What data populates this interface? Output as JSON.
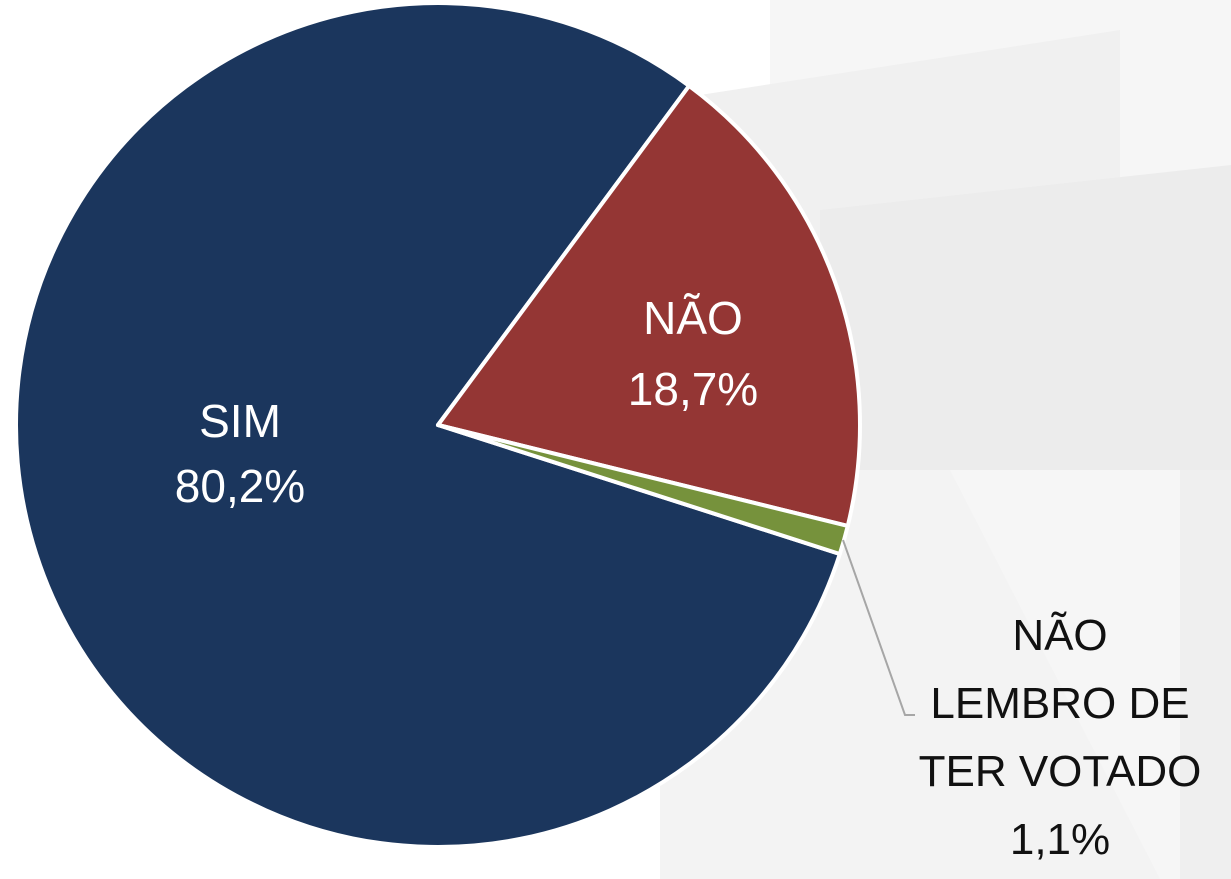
{
  "chart_data": {
    "type": "pie",
    "categories": [
      "SIM",
      "NÃO",
      "NÃO LEMBRO DE TER VOTADO"
    ],
    "values": [
      80.2,
      18.7,
      1.1
    ],
    "value_labels": [
      "80,2%",
      "18,7%",
      "1,1%"
    ],
    "colors": [
      "#1b365d",
      "#943634",
      "#76923c"
    ]
  }
}
